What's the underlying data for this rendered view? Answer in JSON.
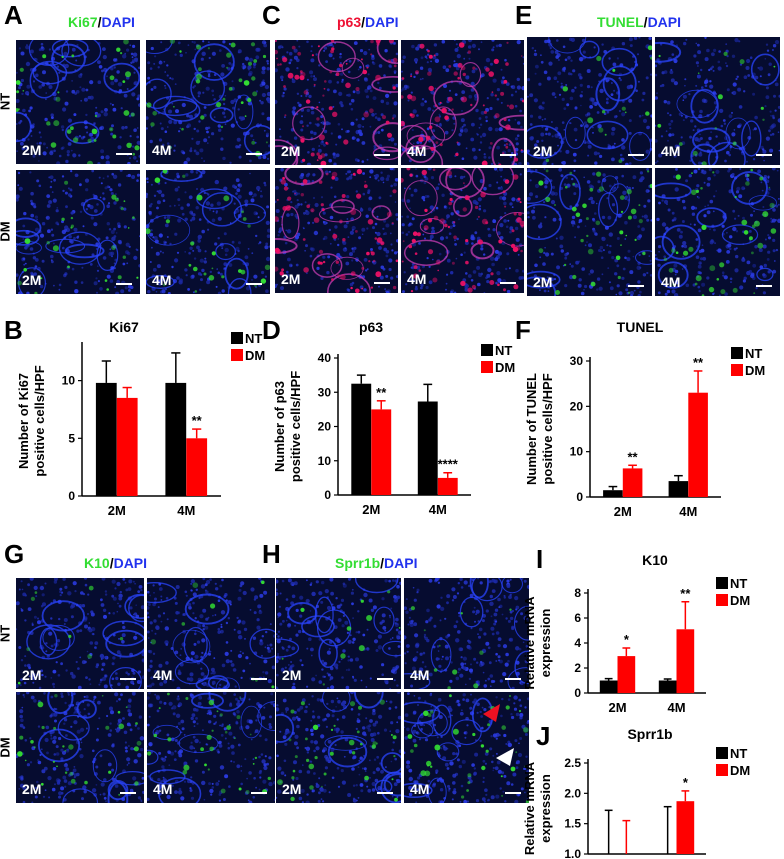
{
  "colors": {
    "nt": "#000000",
    "dm": "#ff0000",
    "green": "#33dd33",
    "red": "#ee1133",
    "blue": "#2233ee"
  },
  "rows": {
    "nt": "NT",
    "dm": "DM"
  },
  "timepoints": {
    "t1": "2M",
    "t2": "4M"
  },
  "stains": [
    {
      "id": "A",
      "panel": "A",
      "marker": "Ki67",
      "sep": "/",
      "counter": "DAPI",
      "marker_color": "#33dd33",
      "tissue": "ki67"
    },
    {
      "id": "C",
      "panel": "C",
      "marker": "p63",
      "sep": "/",
      "counter": "DAPI",
      "marker_color": "#ee1133",
      "tissue": "p63"
    },
    {
      "id": "E",
      "panel": "E",
      "marker": "TUNEL",
      "sep": "/",
      "counter": "DAPI",
      "marker_color": "#33dd33",
      "tissue": "tunel"
    },
    {
      "id": "G",
      "panel": "G",
      "marker": "K10",
      "sep": "/",
      "counter": "DAPI",
      "marker_color": "#33dd33",
      "tissue": "k10"
    },
    {
      "id": "H",
      "panel": "H",
      "marker": "Sprr1b",
      "sep": "/",
      "counter": "DAPI",
      "marker_color": "#33dd33",
      "tissue": "sprr1b"
    }
  ],
  "chart_data": [
    {
      "id": "B",
      "panel": "B",
      "type": "bar",
      "title": "Ki67",
      "ylabel": "Number of Ki67 positive cells/HPF",
      "categories": [
        "2M",
        "4M"
      ],
      "series": [
        {
          "name": "NT",
          "color": "#000000",
          "values": [
            9.8,
            9.8
          ],
          "errors": [
            1.9,
            2.6
          ]
        },
        {
          "name": "DM",
          "color": "#ff0000",
          "values": [
            8.5,
            5.0
          ],
          "errors": [
            0.9,
            0.8
          ]
        }
      ],
      "annotations": [
        "",
        "",
        "",
        "**"
      ],
      "ylim": [
        0,
        13
      ],
      "yticks": [
        0,
        5,
        10
      ],
      "yticklabels": [
        "0",
        "5",
        "10"
      ],
      "legend": "top-right"
    },
    {
      "id": "D",
      "panel": "D",
      "type": "bar",
      "title": "p63",
      "ylabel": "Number of p63 positive cells/HPF",
      "categories": [
        "2M",
        "4M"
      ],
      "series": [
        {
          "name": "NT",
          "color": "#000000",
          "values": [
            32.5,
            27.3
          ],
          "errors": [
            2.5,
            5.0
          ]
        },
        {
          "name": "DM",
          "color": "#ff0000",
          "values": [
            25.0,
            5.0
          ],
          "errors": [
            2.5,
            1.5
          ]
        }
      ],
      "annotations": [
        "",
        "**",
        "",
        "****"
      ],
      "ylim": [
        0,
        40
      ],
      "yticks": [
        0,
        10,
        20,
        30,
        40
      ],
      "yticklabels": [
        "0",
        "10",
        "20",
        "30",
        "40"
      ],
      "legend": "top-right"
    },
    {
      "id": "F",
      "panel": "F",
      "type": "bar",
      "title": "TUNEL",
      "ylabel": "Number of TUNEL positive cells/HPF",
      "categories": [
        "2M",
        "4M"
      ],
      "series": [
        {
          "name": "NT",
          "color": "#000000",
          "values": [
            1.5,
            3.5
          ],
          "errors": [
            0.8,
            1.2
          ]
        },
        {
          "name": "DM",
          "color": "#ff0000",
          "values": [
            6.3,
            23.0
          ],
          "errors": [
            0.7,
            4.8
          ]
        }
      ],
      "annotations": [
        "",
        "**",
        "",
        "**"
      ],
      "ylim": [
        0,
        30
      ],
      "yticks": [
        0,
        10,
        20,
        30
      ],
      "yticklabels": [
        "0",
        "10",
        "20",
        "30"
      ],
      "legend": "top-right"
    },
    {
      "id": "I",
      "panel": "I",
      "type": "bar",
      "title": "K10",
      "ylabel": "Relative mRNA expression",
      "categories": [
        "2M",
        "4M"
      ],
      "series": [
        {
          "name": "NT",
          "color": "#000000",
          "values": [
            1.0,
            1.0
          ],
          "errors": [
            0.15,
            0.12
          ]
        },
        {
          "name": "DM",
          "color": "#ff0000",
          "values": [
            2.95,
            5.1
          ],
          "errors": [
            0.65,
            2.2
          ]
        }
      ],
      "annotations": [
        "",
        "*",
        "",
        "**"
      ],
      "ylim": [
        0,
        8
      ],
      "yticks": [
        0,
        2,
        4,
        6,
        8
      ],
      "yticklabels": [
        "0",
        "2",
        "4",
        "6",
        "8"
      ],
      "legend": "top-right"
    },
    {
      "id": "J",
      "panel": "J",
      "type": "bar",
      "title": "Sprr1b",
      "ylabel": "Relative mRNA expression",
      "categories": [
        "2M",
        "4M"
      ],
      "series": [
        {
          "name": "NT",
          "color": "#000000",
          "values": [
            1.0,
            1.0
          ],
          "errors": [
            0.72,
            0.78
          ]
        },
        {
          "name": "DM",
          "color": "#ff0000",
          "values": [
            0.9,
            1.87
          ],
          "errors": [
            0.65,
            0.17
          ]
        }
      ],
      "annotations": [
        "",
        "",
        "",
        "*"
      ],
      "ylim": [
        1.0,
        2.5
      ],
      "yticks": [
        1.0,
        1.5,
        2.0,
        2.5
      ],
      "yticklabels": [
        "1.0",
        "1.5",
        "2.0",
        "2.5"
      ],
      "legend": "top-right"
    }
  ]
}
